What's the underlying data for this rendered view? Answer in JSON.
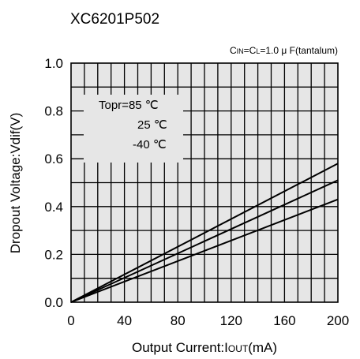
{
  "chart_data": {
    "type": "line",
    "title": "XC6201P502",
    "condition": {
      "prefix": "C",
      "sub1": "IN",
      "mid": "=C",
      "sub2": "L",
      "suffix": "=1.0 μ F(tantalum)"
    },
    "xlabel": {
      "prefix": "Output Current:I",
      "sub": "OUT",
      "suffix": "(mA)"
    },
    "ylabel": "Dropout Voltage:Vdif(V)",
    "xlim": [
      0,
      200
    ],
    "ylim": [
      0,
      1.0
    ],
    "x_ticks": [
      0,
      40,
      80,
      120,
      160,
      200
    ],
    "x_tick_labels": [
      "0",
      "40",
      "80",
      "120",
      "160",
      "200"
    ],
    "y_ticks": [
      0,
      0.2,
      0.4,
      0.6,
      0.8,
      1.0
    ],
    "y_tick_labels": [
      "0.0",
      "0.2",
      "0.4",
      "0.6",
      "0.8",
      "1.0"
    ],
    "grid": true,
    "legend_placement": "top-left",
    "legend": [
      "Topr=85 ℃",
      "25 ℃",
      "-40 ℃"
    ],
    "series": [
      {
        "name": "Topr=85 ℃",
        "x": [
          0,
          200
        ],
        "y": [
          0,
          0.58
        ]
      },
      {
        "name": "25 ℃",
        "x": [
          0,
          200
        ],
        "y": [
          0,
          0.51
        ]
      },
      {
        "name": "-40 ℃",
        "x": [
          0,
          200
        ],
        "y": [
          0,
          0.43
        ]
      }
    ],
    "colors": {
      "plot_bg": "#e6e6e6",
      "line": "#000000"
    }
  }
}
